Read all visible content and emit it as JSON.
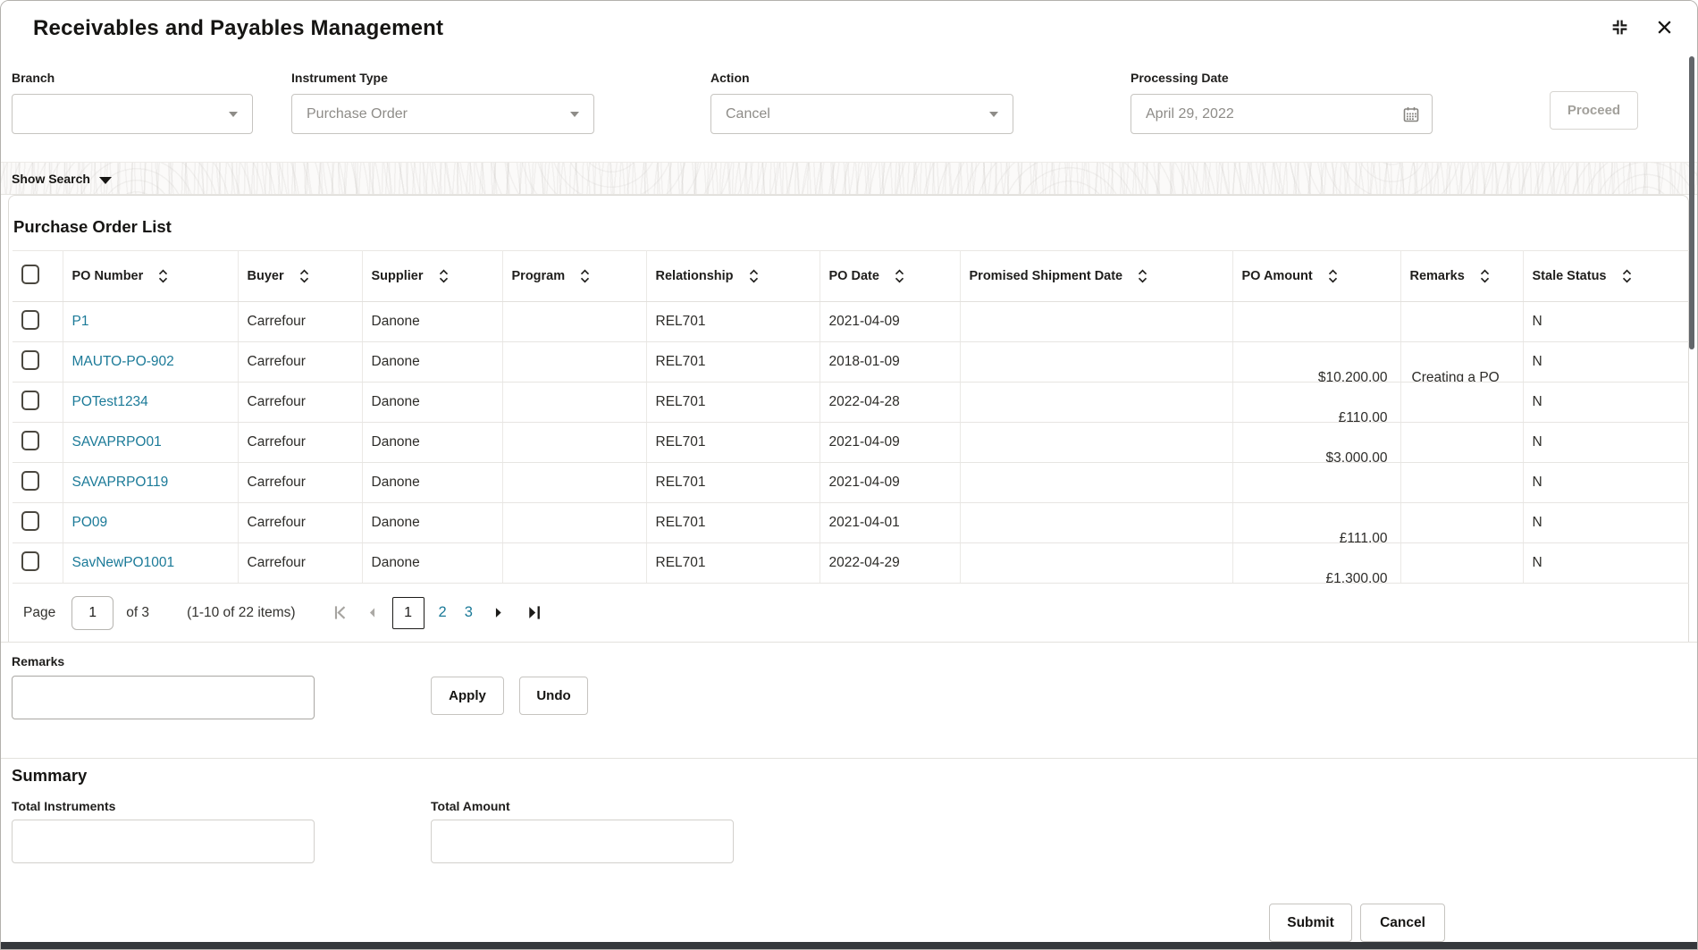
{
  "window": {
    "title": "Receivables and Payables Management"
  },
  "filters": {
    "branch": {
      "label": "Branch",
      "value": ""
    },
    "instrument_type": {
      "label": "Instrument Type",
      "value": "Purchase Order"
    },
    "action": {
      "label": "Action",
      "value": "Cancel"
    },
    "processing_date": {
      "label": "Processing Date",
      "value": "April 29, 2022"
    },
    "proceed_label": "Proceed"
  },
  "search_toggle": {
    "label": "Show Search"
  },
  "po_list": {
    "title": "Purchase Order List",
    "columns": [
      {
        "key": "po_number",
        "label": "PO Number"
      },
      {
        "key": "buyer",
        "label": "Buyer"
      },
      {
        "key": "supplier",
        "label": "Supplier"
      },
      {
        "key": "program",
        "label": "Program"
      },
      {
        "key": "relationship",
        "label": "Relationship"
      },
      {
        "key": "po_date",
        "label": "PO Date"
      },
      {
        "key": "promised_shipment_date",
        "label": "Promised Shipment Date"
      },
      {
        "key": "po_amount",
        "label": "PO Amount"
      },
      {
        "key": "remarks",
        "label": "Remarks"
      },
      {
        "key": "stale_status",
        "label": "Stale Status"
      }
    ],
    "rows": [
      {
        "po_number": "P1",
        "buyer": "Carrefour",
        "supplier": "Danone",
        "program": "",
        "relationship": "REL701",
        "po_date": "2021-04-09",
        "promised_shipment_date": "",
        "po_amount": "",
        "remarks": "",
        "stale_status": "N"
      },
      {
        "po_number": "MAUTO-PO-902",
        "buyer": "Carrefour",
        "supplier": "Danone",
        "program": "",
        "relationship": "REL701",
        "po_date": "2018-01-09",
        "promised_shipment_date": "",
        "po_amount": "$10,200.00",
        "remarks": "Creating a PO",
        "stale_status": "N"
      },
      {
        "po_number": "POTest1234",
        "buyer": "Carrefour",
        "supplier": "Danone",
        "program": "",
        "relationship": "REL701",
        "po_date": "2022-04-28",
        "promised_shipment_date": "",
        "po_amount": "£110.00",
        "remarks": "",
        "stale_status": "N"
      },
      {
        "po_number": "SAVAPRPO01",
        "buyer": "Carrefour",
        "supplier": "Danone",
        "program": "",
        "relationship": "REL701",
        "po_date": "2021-04-09",
        "promised_shipment_date": "",
        "po_amount": "$3,000.00",
        "remarks": "",
        "stale_status": "N"
      },
      {
        "po_number": "SAVAPRPO119",
        "buyer": "Carrefour",
        "supplier": "Danone",
        "program": "",
        "relationship": "REL701",
        "po_date": "2021-04-09",
        "promised_shipment_date": "",
        "po_amount": "",
        "remarks": "",
        "stale_status": "N"
      },
      {
        "po_number": "PO09",
        "buyer": "Carrefour",
        "supplier": "Danone",
        "program": "",
        "relationship": "REL701",
        "po_date": "2021-04-01",
        "promised_shipment_date": "",
        "po_amount": "£111.00",
        "remarks": "",
        "stale_status": "N"
      },
      {
        "po_number": "SavNewPO1001",
        "buyer": "Carrefour",
        "supplier": "Danone",
        "program": "",
        "relationship": "REL701",
        "po_date": "2022-04-29",
        "promised_shipment_date": "",
        "po_amount": "£1,300.00",
        "remarks": "",
        "stale_status": "N"
      }
    ]
  },
  "pagination": {
    "page_label": "Page",
    "current_page": "1",
    "of_label": "of 3",
    "items_summary": "(1-10 of 22 items)",
    "pages": [
      "1",
      "2",
      "3"
    ],
    "active_page": "1"
  },
  "remarks": {
    "label": "Remarks",
    "value": "",
    "apply_label": "Apply",
    "undo_label": "Undo"
  },
  "summary": {
    "title": "Summary",
    "total_instruments": {
      "label": "Total Instruments",
      "value": ""
    },
    "total_amount": {
      "label": "Total Amount",
      "value": ""
    }
  },
  "footer": {
    "submit_label": "Submit",
    "cancel_label": "Cancel"
  },
  "icons": {
    "collapse": "collapse-icon",
    "close": "close-icon",
    "calendar": "calendar-icon",
    "dropdown_caret": "chevron-down-icon",
    "sort": "sort-icon"
  },
  "colors": {
    "link": "#1b7a98",
    "footer_bar": "#35383c",
    "disabled_text": "#a2a09b"
  }
}
